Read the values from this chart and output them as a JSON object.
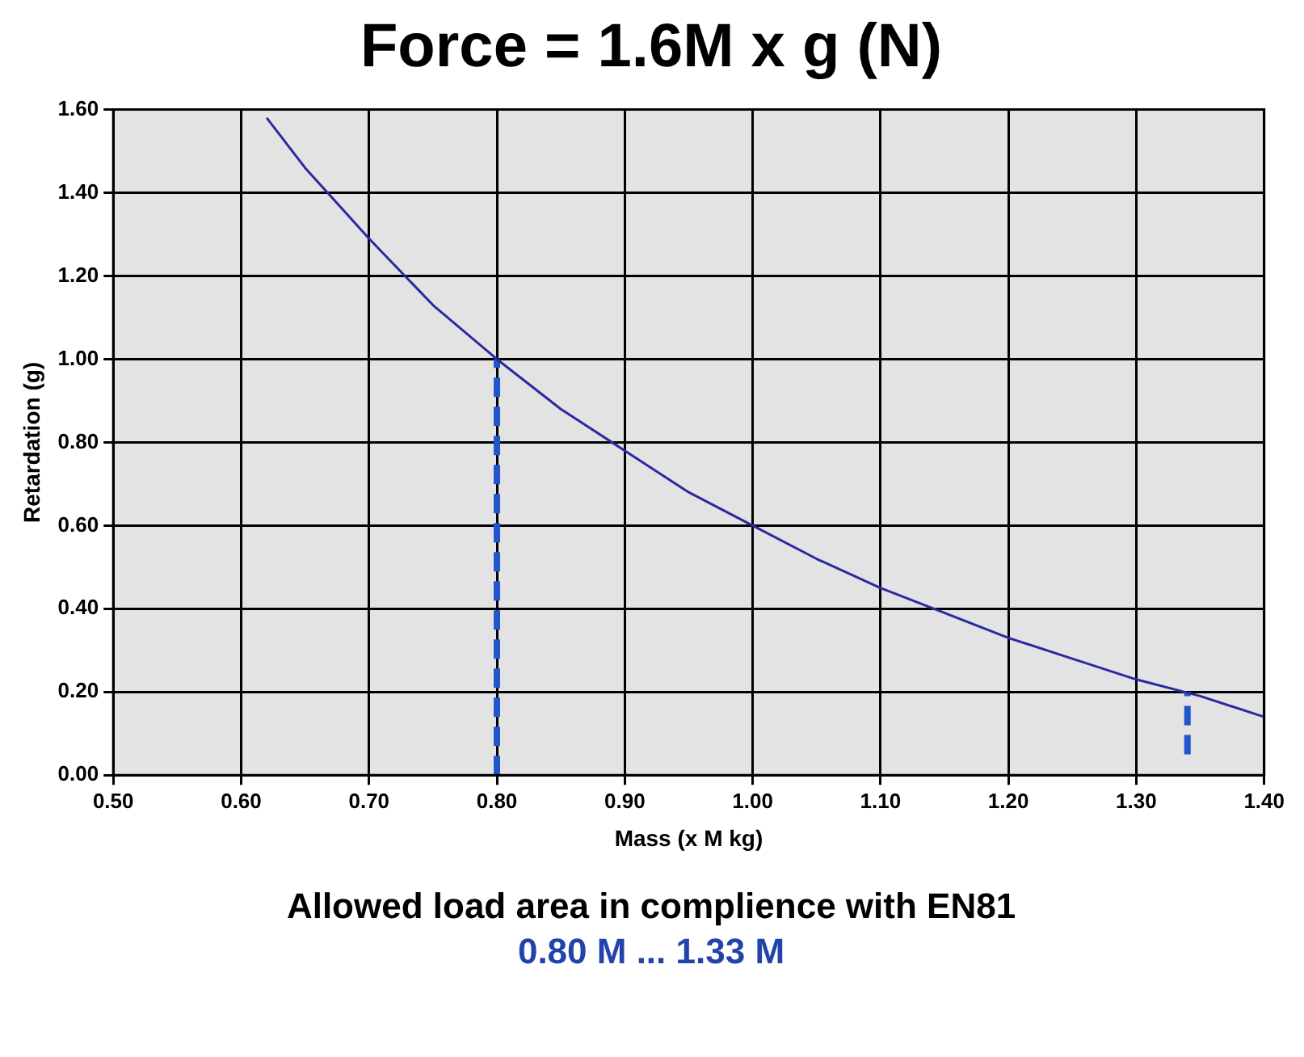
{
  "chart_data": {
    "type": "line",
    "title": "Force = 1.6M x g (N)",
    "xlabel": "Mass (x M kg)",
    "ylabel": "Retardation (g)",
    "series": [
      {
        "color": "#2a2aa0",
        "x": [
          0.62,
          0.65,
          0.7,
          0.75,
          0.8,
          0.85,
          0.9,
          0.95,
          1.0,
          1.05,
          1.1,
          1.15,
          1.2,
          1.25,
          1.3,
          1.35,
          1.4
        ],
        "values": [
          1.58,
          1.46,
          1.29,
          1.13,
          1.0,
          0.88,
          0.78,
          0.68,
          0.6,
          0.52,
          0.45,
          0.39,
          0.33,
          0.28,
          0.23,
          0.19,
          0.14
        ]
      },
      {
        "color": "#2255cc",
        "x": [
          0.8,
          0.8
        ],
        "values": [
          0,
          1.0
        ],
        "line_style": "dashed"
      },
      {
        "color": "#2255cc",
        "x": [
          1.34,
          1.34
        ],
        "values": [
          0.05,
          0.2
        ],
        "line_style": "dashed"
      }
    ],
    "xlim": [
      0.5,
      1.4
    ],
    "ylim": [
      0,
      1.6
    ],
    "xticks": [
      {
        "value": 0.5,
        "label": "0.50"
      },
      {
        "value": 0.6,
        "label": "0.60"
      },
      {
        "value": 0.7,
        "label": "0.70"
      },
      {
        "value": 0.8,
        "label": "0.80"
      },
      {
        "value": 0.9,
        "label": "0.90"
      },
      {
        "value": 1.0,
        "label": "1.00"
      },
      {
        "value": 1.1,
        "label": "1.10"
      },
      {
        "value": 1.2,
        "label": "1.20"
      },
      {
        "value": 1.3,
        "label": "1.30"
      },
      {
        "value": 1.4,
        "label": "1.40"
      }
    ],
    "yticks": [
      {
        "value": 0,
        "label": "0.00"
      },
      {
        "value": 0.2,
        "label": "0.20"
      },
      {
        "value": 0.4,
        "label": "0.40"
      },
      {
        "value": 0.6,
        "label": "0.60"
      },
      {
        "value": 0.8,
        "label": "0.80"
      },
      {
        "value": 1.0,
        "label": "1.00"
      },
      {
        "value": 1.2,
        "label": "1.20"
      },
      {
        "value": 1.4,
        "label": "1.40"
      },
      {
        "value": 1.6,
        "label": "1.60"
      }
    ],
    "grid": true,
    "marker": "none",
    "line_style": "solid",
    "legend": false,
    "annotations": [
      "Allowed load area in complience with EN81",
      "0.80 M ... 1.33 M"
    ]
  }
}
